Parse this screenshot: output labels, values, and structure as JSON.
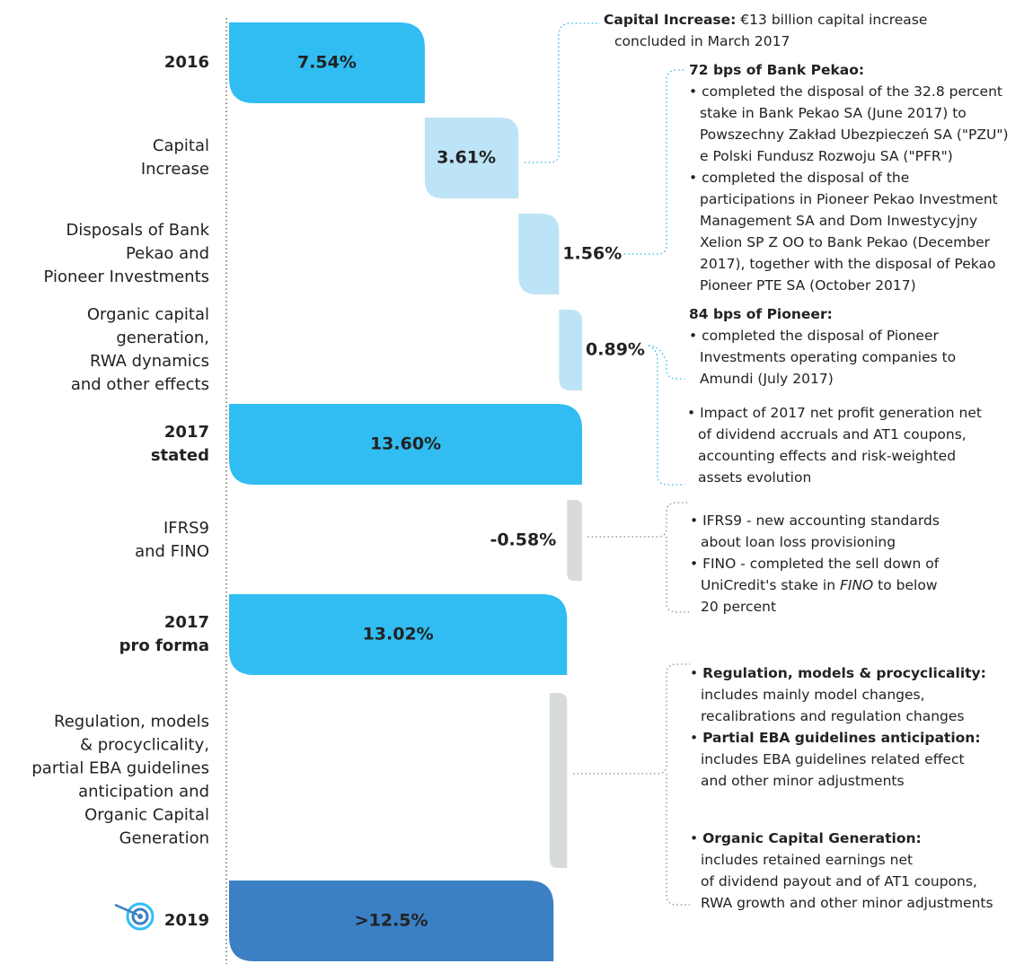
{
  "chart_data": {
    "type": "waterfall",
    "categories": [
      [
        "2016"
      ],
      [
        "Capital",
        "Increase"
      ],
      [
        "Disposals of Bank",
        "Pekao and",
        "Pioneer Investments"
      ],
      [
        "Organic capital",
        "generation,",
        "RWA dynamics",
        "and other effects"
      ],
      [
        "2017",
        "stated"
      ],
      [
        "IFRS9",
        "and FINO"
      ],
      [
        "2017",
        "pro forma"
      ],
      [
        "Regulation, models",
        "& procyclicality,",
        "partial EBA guidelines",
        "anticipation and",
        "Organic Capital",
        "Generation"
      ],
      [
        "2019"
      ]
    ],
    "values": [
      7.54,
      3.61,
      1.56,
      0.89,
      13.6,
      -0.58,
      13.02,
      -0.67,
      12.5
    ],
    "value_labels": [
      "7.54%",
      "3.61%",
      "1.56%",
      "0.89%",
      "13.60%",
      "-0.58%",
      "13.02%",
      null,
      ">12.5%"
    ],
    "is_total": [
      true,
      false,
      false,
      false,
      true,
      false,
      true,
      false,
      true
    ],
    "colors": [
      "#31bdf2",
      "#bde3f6",
      "#bde3f6",
      "#bde3f6",
      "#31bdf2",
      "#d8dbdb",
      "#31bdf2",
      "#d8dbdb",
      "#3b7fc4"
    ],
    "annotations": [
      [
        [
          {
            "b": "Capital Increase:"
          },
          " €13 billion capital increase"
        ],
        [
          "concluded in March 2017"
        ]
      ],
      [
        [
          {
            "b": "72 bps of Bank Pekao:"
          }
        ],
        [
          "• completed the disposal of the 32.8 percent"
        ],
        [
          "stake in Bank Pekao SA (June 2017) to"
        ],
        [
          "Powszechny Zakład Ubezpieczeń SA (\"PZU\")"
        ],
        [
          "e Polski Fundusz Rozwoju SA (\"PFR\")"
        ],
        [
          "• completed the disposal of the"
        ],
        [
          "participations in Pioneer Pekao Investment"
        ],
        [
          "Management SA and Dom Inwestycyjny"
        ],
        [
          "Xelion SP Z OO to Bank Pekao (December"
        ],
        [
          "2017), together with the disposal of Pekao"
        ],
        [
          "Pioneer PTE SA (October 2017)"
        ]
      ],
      [
        [
          {
            "b": "84 bps of Pioneer:"
          }
        ],
        [
          "• completed the disposal of Pioneer"
        ],
        [
          "Investments operating companies to"
        ],
        [
          "Amundi (July 2017)"
        ]
      ],
      [
        [
          "• Impact of 2017 net profit generation net"
        ],
        [
          "of dividend accruals and AT1 coupons,"
        ],
        [
          "accounting effects and risk-weighted"
        ],
        [
          "assets evolution"
        ]
      ],
      [
        [
          "• IFRS9 - new accounting standards"
        ],
        [
          "about loan loss provisioning"
        ],
        [
          "• FINO - completed the sell down of"
        ],
        [
          "UniCredit's stake in ",
          {
            "i": "FINO"
          },
          " to below"
        ],
        [
          "20 percent"
        ]
      ],
      [
        [
          "• ",
          {
            "b": "Regulation, models & procyclicality:"
          }
        ],
        [
          "includes mainly model changes,"
        ],
        [
          "recalibrations and regulation changes"
        ],
        [
          "• ",
          {
            "b": "Partial EBA guidelines anticipation:"
          }
        ],
        [
          "includes EBA guidelines related effect"
        ],
        [
          "and other minor adjustments"
        ]
      ],
      [
        [
          "• ",
          {
            "b": "Organic Capital Generation:"
          }
        ],
        [
          "includes retained earnings net"
        ],
        [
          "of dividend payout and of AT1 coupons,"
        ],
        [
          "RWA growth and other minor adjustments"
        ]
      ]
    ]
  }
}
